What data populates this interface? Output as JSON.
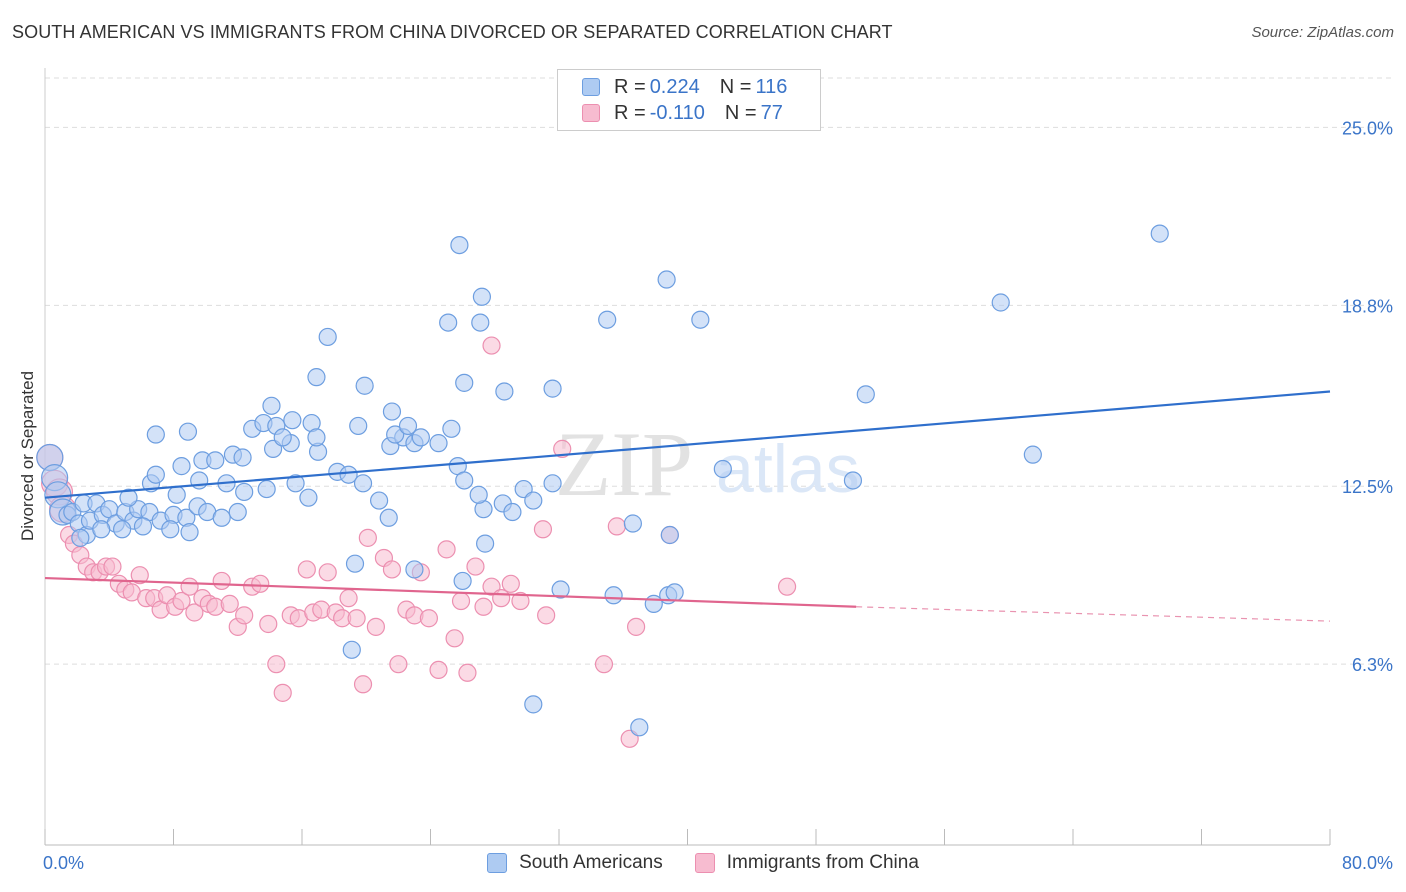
{
  "title": "SOUTH AMERICAN VS IMMIGRANTS FROM CHINA DIVORCED OR SEPARATED CORRELATION CHART",
  "source": "Source: ZipAtlas.com",
  "watermark": {
    "zip": "ZIP",
    "atlas": "atlas"
  },
  "legend": {
    "rows": [
      {
        "r_label": "R = ",
        "r_value": "0.224",
        "n_label": "N = ",
        "n_value": "116"
      },
      {
        "r_label": "R = ",
        "r_value": "-0.110",
        "n_label": "N = ",
        "n_value": "77"
      }
    ]
  },
  "bottom_legend": [
    "South Americans",
    "Immigrants from China"
  ],
  "colors": {
    "blue_fill": "#aecbf2",
    "blue_stroke": "#6d9ee0",
    "blue_line": "#2f6fcc",
    "pink_fill": "#f7bcd0",
    "pink_stroke": "#ec8fb0",
    "pink_line": "#e0658e",
    "axis_label": "#3a74c8",
    "grid": "#dddddd"
  },
  "chart_data": {
    "type": "scatter",
    "title": "SOUTH AMERICAN VS IMMIGRANTS FROM CHINA DIVORCED OR SEPARATED CORRELATION CHART",
    "xlabel": "",
    "ylabel": "Divorced or Separated",
    "xlim": [
      0,
      80
    ],
    "ylim": [
      0,
      27
    ],
    "x_tick_labels": [
      "0.0%",
      "80.0%"
    ],
    "y_ticks": [
      6.3,
      12.5,
      18.8,
      25.0
    ],
    "y_tick_labels": [
      "6.3%",
      "12.5%",
      "18.8%",
      "25.0%"
    ],
    "grid": true,
    "legend_position": "top-center",
    "series": [
      {
        "name": "South Americans",
        "r": 0.224,
        "n": 116,
        "trend": {
          "x": [
            0,
            80
          ],
          "y": [
            12.1,
            15.8
          ]
        },
        "points": [
          [
            0.3,
            13.5
          ],
          [
            0.6,
            12.8
          ],
          [
            0.8,
            12.2
          ],
          [
            1.1,
            11.6
          ],
          [
            1.4,
            11.5
          ],
          [
            1.7,
            11.6
          ],
          [
            2.1,
            11.2
          ],
          [
            2.4,
            11.9
          ],
          [
            2.6,
            10.8
          ],
          [
            2.8,
            11.3
          ],
          [
            3.2,
            11.9
          ],
          [
            3.6,
            11.5
          ],
          [
            4.0,
            11.7
          ],
          [
            4.4,
            11.2
          ],
          [
            5.0,
            11.6
          ],
          [
            5.5,
            11.3
          ],
          [
            5.8,
            11.7
          ],
          [
            6.5,
            11.6
          ],
          [
            7.2,
            11.3
          ],
          [
            8.0,
            11.5
          ],
          [
            8.8,
            11.4
          ],
          [
            9.5,
            11.8
          ],
          [
            10.1,
            11.6
          ],
          [
            11.0,
            11.4
          ],
          [
            12.0,
            11.6
          ],
          [
            3.5,
            11.0
          ],
          [
            4.8,
            11.0
          ],
          [
            6.1,
            11.1
          ],
          [
            7.8,
            11.0
          ],
          [
            9.0,
            10.9
          ],
          [
            2.2,
            10.7
          ],
          [
            5.2,
            12.1
          ],
          [
            6.6,
            12.6
          ],
          [
            8.2,
            12.2
          ],
          [
            9.6,
            12.7
          ],
          [
            11.3,
            12.6
          ],
          [
            12.4,
            12.3
          ],
          [
            13.8,
            12.4
          ],
          [
            16.4,
            12.1
          ],
          [
            15.6,
            12.6
          ],
          [
            6.9,
            12.9
          ],
          [
            8.5,
            13.2
          ],
          [
            9.8,
            13.4
          ],
          [
            10.6,
            13.4
          ],
          [
            11.7,
            13.6
          ],
          [
            12.3,
            13.5
          ],
          [
            14.2,
            13.8
          ],
          [
            15.3,
            14.0
          ],
          [
            17.0,
            13.7
          ],
          [
            18.2,
            13.0
          ],
          [
            18.9,
            12.9
          ],
          [
            19.8,
            12.6
          ],
          [
            20.8,
            12.0
          ],
          [
            21.5,
            13.9
          ],
          [
            22.3,
            14.2
          ],
          [
            23.0,
            14.0
          ],
          [
            24.5,
            14.0
          ],
          [
            25.7,
            13.2
          ],
          [
            26.1,
            12.7
          ],
          [
            27.3,
            11.7
          ],
          [
            27.0,
            12.2
          ],
          [
            28.5,
            11.9
          ],
          [
            29.1,
            11.6
          ],
          [
            29.8,
            12.4
          ],
          [
            30.4,
            12.0
          ],
          [
            31.6,
            12.6
          ],
          [
            6.9,
            14.3
          ],
          [
            8.9,
            14.4
          ],
          [
            12.9,
            14.5
          ],
          [
            13.6,
            14.7
          ],
          [
            14.4,
            14.6
          ],
          [
            14.8,
            14.2
          ],
          [
            15.4,
            14.8
          ],
          [
            16.6,
            14.7
          ],
          [
            16.9,
            14.2
          ],
          [
            19.5,
            14.6
          ],
          [
            21.8,
            14.3
          ],
          [
            22.6,
            14.6
          ],
          [
            23.4,
            14.2
          ],
          [
            25.3,
            14.5
          ],
          [
            14.1,
            15.3
          ],
          [
            21.6,
            15.1
          ],
          [
            16.9,
            16.3
          ],
          [
            19.9,
            16.0
          ],
          [
            26.1,
            16.1
          ],
          [
            28.6,
            15.8
          ],
          [
            31.6,
            15.9
          ],
          [
            17.6,
            17.7
          ],
          [
            25.1,
            18.2
          ],
          [
            27.1,
            18.2
          ],
          [
            27.2,
            19.1
          ],
          [
            35.0,
            18.3
          ],
          [
            38.7,
            19.7
          ],
          [
            40.8,
            18.3
          ],
          [
            25.8,
            20.9
          ],
          [
            59.5,
            18.9
          ],
          [
            69.4,
            21.3
          ],
          [
            51.1,
            15.7
          ],
          [
            61.5,
            13.6
          ],
          [
            50.3,
            12.7
          ],
          [
            42.2,
            13.1
          ],
          [
            36.6,
            11.2
          ],
          [
            38.9,
            10.8
          ],
          [
            27.4,
            10.5
          ],
          [
            19.3,
            9.8
          ],
          [
            21.4,
            11.4
          ],
          [
            23.0,
            9.6
          ],
          [
            26.0,
            9.2
          ],
          [
            32.1,
            8.9
          ],
          [
            35.4,
            8.7
          ],
          [
            37.9,
            8.4
          ],
          [
            38.8,
            8.7
          ],
          [
            39.2,
            8.8
          ],
          [
            19.1,
            6.8
          ],
          [
            30.4,
            4.9
          ],
          [
            37.0,
            4.1
          ]
        ]
      },
      {
        "name": "Immigrants from China",
        "r": -0.11,
        "n": 77,
        "trend": {
          "x": [
            0,
            50.5
          ],
          "y": [
            9.3,
            8.3
          ]
        },
        "trend_dashed": {
          "x": [
            50.5,
            80
          ],
          "y": [
            8.3,
            7.8
          ]
        },
        "points": [
          [
            0.3,
            13.5
          ],
          [
            0.6,
            12.6
          ],
          [
            0.9,
            12.3
          ],
          [
            1.1,
            11.7
          ],
          [
            1.5,
            10.8
          ],
          [
            1.8,
            10.5
          ],
          [
            2.2,
            10.1
          ],
          [
            2.6,
            9.7
          ],
          [
            3.0,
            9.5
          ],
          [
            3.4,
            9.5
          ],
          [
            3.8,
            9.7
          ],
          [
            4.2,
            9.7
          ],
          [
            4.6,
            9.1
          ],
          [
            5.0,
            8.9
          ],
          [
            5.4,
            8.8
          ],
          [
            5.9,
            9.4
          ],
          [
            6.3,
            8.6
          ],
          [
            6.8,
            8.6
          ],
          [
            7.2,
            8.2
          ],
          [
            7.6,
            8.7
          ],
          [
            8.1,
            8.3
          ],
          [
            8.5,
            8.5
          ],
          [
            9.0,
            9.0
          ],
          [
            9.3,
            8.1
          ],
          [
            9.8,
            8.6
          ],
          [
            10.2,
            8.4
          ],
          [
            10.6,
            8.3
          ],
          [
            11.0,
            9.2
          ],
          [
            11.5,
            8.4
          ],
          [
            12.0,
            7.6
          ],
          [
            12.4,
            8.0
          ],
          [
            12.9,
            9.0
          ],
          [
            13.4,
            9.1
          ],
          [
            13.9,
            7.7
          ],
          [
            14.4,
            6.3
          ],
          [
            14.8,
            5.3
          ],
          [
            15.3,
            8.0
          ],
          [
            15.8,
            7.9
          ],
          [
            16.3,
            9.6
          ],
          [
            16.7,
            8.1
          ],
          [
            17.2,
            8.2
          ],
          [
            17.6,
            9.5
          ],
          [
            18.1,
            8.1
          ],
          [
            18.5,
            7.9
          ],
          [
            18.9,
            8.6
          ],
          [
            19.4,
            7.9
          ],
          [
            19.8,
            5.6
          ],
          [
            20.1,
            10.7
          ],
          [
            20.6,
            7.6
          ],
          [
            21.1,
            10.0
          ],
          [
            21.6,
            9.6
          ],
          [
            22.0,
            6.3
          ],
          [
            22.5,
            8.2
          ],
          [
            23.0,
            8.0
          ],
          [
            23.4,
            9.5
          ],
          [
            23.9,
            7.9
          ],
          [
            24.5,
            6.1
          ],
          [
            25.0,
            10.3
          ],
          [
            25.5,
            7.2
          ],
          [
            25.9,
            8.5
          ],
          [
            26.3,
            6.0
          ],
          [
            26.8,
            9.7
          ],
          [
            27.3,
            8.3
          ],
          [
            27.8,
            9.0
          ],
          [
            28.4,
            8.6
          ],
          [
            29.0,
            9.1
          ],
          [
            29.6,
            8.5
          ],
          [
            31.0,
            11.0
          ],
          [
            31.2,
            8.0
          ],
          [
            32.2,
            13.8
          ],
          [
            34.8,
            6.3
          ],
          [
            35.6,
            11.1
          ],
          [
            36.4,
            3.7
          ],
          [
            36.8,
            7.6
          ],
          [
            38.9,
            10.8
          ],
          [
            46.2,
            9.0
          ],
          [
            27.8,
            17.4
          ]
        ]
      }
    ]
  }
}
